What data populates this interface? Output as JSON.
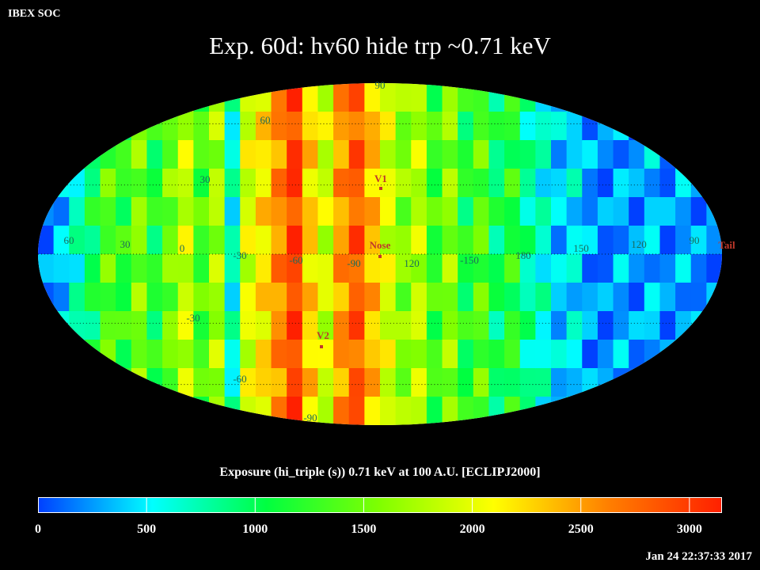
{
  "header": {
    "org": "IBEX SOC",
    "title": "Exp.   60d: hv60 hide trp ~0.71 keV"
  },
  "map": {
    "projection": "Mollweide",
    "lat_labels": [
      "90",
      "60",
      "30",
      "0",
      "-30",
      "-60",
      "-90"
    ],
    "lon_labels": [
      "60",
      "30",
      "0",
      "-30",
      "-60",
      "-90",
      "120",
      "-150",
      "180",
      "150",
      "120",
      "90"
    ],
    "markers": [
      {
        "label": "V1",
        "color": "#c0392b"
      },
      {
        "label": "Nose",
        "color": "#c0392b"
      },
      {
        "label": "V2",
        "color": "#c0392b"
      },
      {
        "label": "Tail",
        "color": "#c0392b"
      }
    ]
  },
  "colorbar": {
    "title": "Exposure (hi_triple (s))  0.71 keV at 100 A.U. [ECLIPJ2000]",
    "min": 0,
    "max": 3150,
    "ticks": [
      "0",
      "500",
      "1000",
      "1500",
      "2000",
      "2500",
      "3000"
    ],
    "colors": [
      "#0040ff",
      "#00ffff",
      "#00ff40",
      "#80ff00",
      "#ffff00",
      "#ff8000",
      "#ff2000"
    ]
  },
  "footer": {
    "timestamp": "Jan 24 22:37:33 2017"
  }
}
